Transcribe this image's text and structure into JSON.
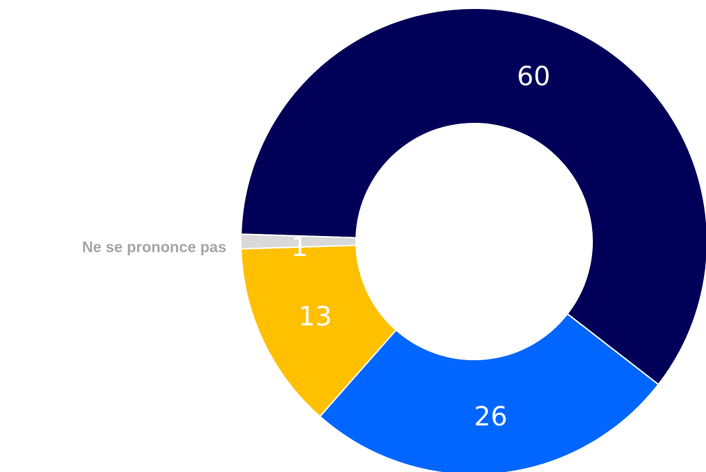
{
  "chart_data": {
    "type": "pie",
    "variant": "donut",
    "slices": [
      {
        "value": 60,
        "label": "60",
        "color": "#000058"
      },
      {
        "value": 26,
        "label": "26",
        "color": "#0066ff"
      },
      {
        "value": 13,
        "label": "13",
        "color": "#ffc000"
      },
      {
        "value": 1,
        "label": "1",
        "color": "#d9d9d9",
        "category": "Ne se prononce pas"
      }
    ],
    "category_label_color": "#a6a6a6",
    "legend": "none"
  }
}
